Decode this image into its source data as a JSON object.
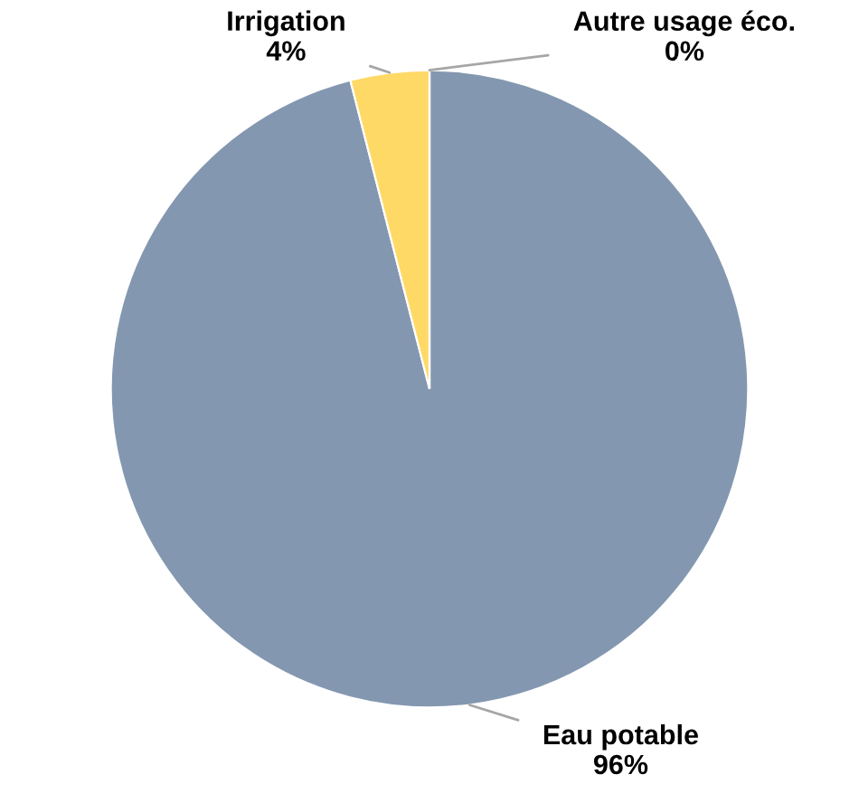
{
  "chart_data": {
    "type": "pie",
    "categories": [
      "Eau potable",
      "Irrigation",
      "Autre usage éco."
    ],
    "values": [
      96,
      4,
      0
    ],
    "colors": [
      "#8497b0",
      "#ffd966",
      "#f4b183"
    ],
    "value_labels": [
      "96%",
      "4%",
      "0%"
    ]
  }
}
